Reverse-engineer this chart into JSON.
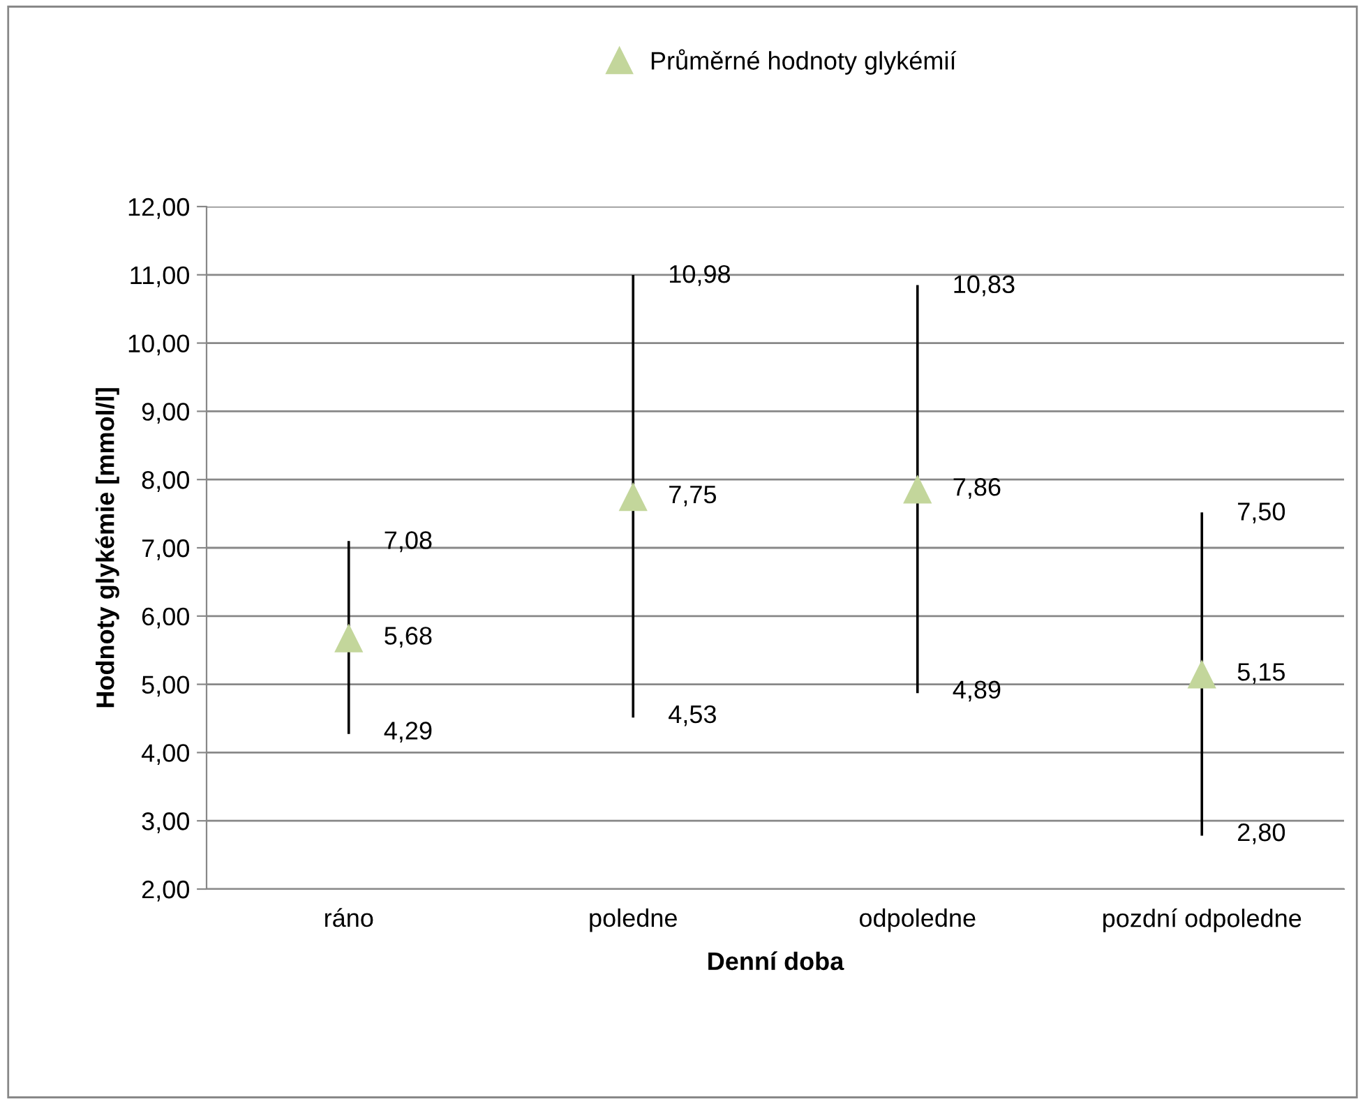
{
  "chart_data": {
    "type": "scatter",
    "xlabel": "Denní doba",
    "ylabel": "Hodnoty glykémie [mmol/l]",
    "categories": [
      "ráno",
      "poledne",
      "odpoledne",
      "pozdní odpoledne"
    ],
    "series": [
      {
        "name": "Průměrné hodnoty glykémií",
        "color": "#c3d69b",
        "values": [
          5.68,
          7.75,
          7.86,
          5.15
        ],
        "errors": [
          [
            4.29,
            7.08
          ],
          [
            4.53,
            10.98
          ],
          [
            4.89,
            10.83
          ],
          [
            2.8,
            7.5
          ]
        ],
        "value_labels": [
          "5,68",
          "7,75",
          "7,86",
          "5,15"
        ]
      }
    ],
    "annotations": [
      {
        "text": "7,08",
        "x": "ráno",
        "y": 7.08
      },
      {
        "text": "4,29",
        "x": "ráno",
        "y": 4.29
      },
      {
        "text": "10,98",
        "x": "poledne",
        "y": 10.98
      },
      {
        "text": "4,53",
        "x": "poledne",
        "y": 4.53
      },
      {
        "text": "10,83",
        "x": "odpoledne",
        "y": 10.83
      },
      {
        "text": "4,89",
        "x": "odpoledne",
        "y": 4.89
      },
      {
        "text": "7,50",
        "x": "pozdní odpoledne",
        "y": 7.5
      },
      {
        "text": "2,80",
        "x": "pozdní odpoledne",
        "y": 2.8
      }
    ],
    "ylim": [
      2,
      12
    ],
    "yticks": [
      {
        "value": 2,
        "label": "2,00"
      },
      {
        "value": 3,
        "label": "3,00"
      },
      {
        "value": 4,
        "label": "4,00"
      },
      {
        "value": 5,
        "label": "5,00"
      },
      {
        "value": 6,
        "label": "6,00"
      },
      {
        "value": 7,
        "label": "7,00"
      },
      {
        "value": 8,
        "label": "8,00"
      },
      {
        "value": 9,
        "label": "9,00"
      },
      {
        "value": 10,
        "label": "10,00"
      },
      {
        "value": 11,
        "label": "11,00"
      },
      {
        "value": 12,
        "label": "12,00"
      }
    ],
    "grid": "y",
    "legend": "top",
    "marker": "triangle"
  }
}
